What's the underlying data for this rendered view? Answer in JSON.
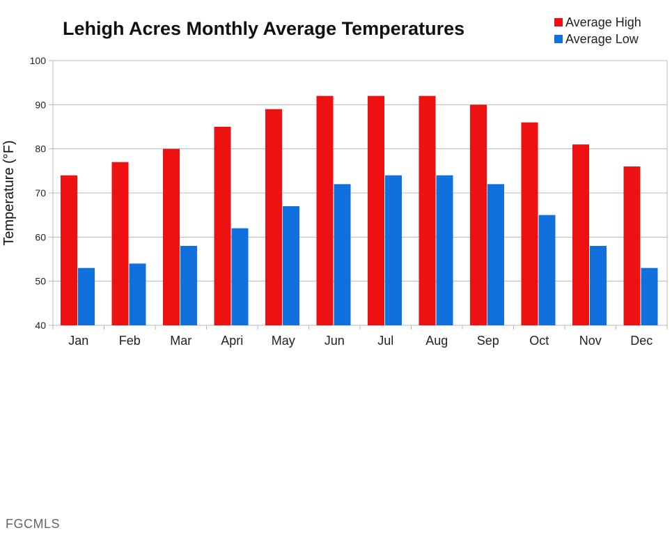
{
  "chart_data": {
    "type": "bar",
    "title": "Lehigh Acres Monthly Average Temperatures",
    "xlabel": "",
    "ylabel": "Temperature (°F)",
    "ylim": [
      40,
      100
    ],
    "yticks": [
      40,
      50,
      60,
      70,
      80,
      90,
      100
    ],
    "grid": true,
    "legend_position": "top-right",
    "categories": [
      "Jan",
      "Feb",
      "Mar",
      "Apri",
      "May",
      "Jun",
      "Jul",
      "Aug",
      "Sep",
      "Oct",
      "Nov",
      "Dec"
    ],
    "series": [
      {
        "name": "Average High",
        "color": "#ee1111",
        "values": [
          74,
          77,
          80,
          85,
          89,
          92,
          92,
          92,
          90,
          86,
          81,
          76
        ]
      },
      {
        "name": "Average Low",
        "color": "#1070dd",
        "values": [
          53,
          54,
          58,
          62,
          67,
          72,
          74,
          74,
          72,
          65,
          58,
          53
        ]
      }
    ]
  },
  "watermark": "FGCMLS"
}
